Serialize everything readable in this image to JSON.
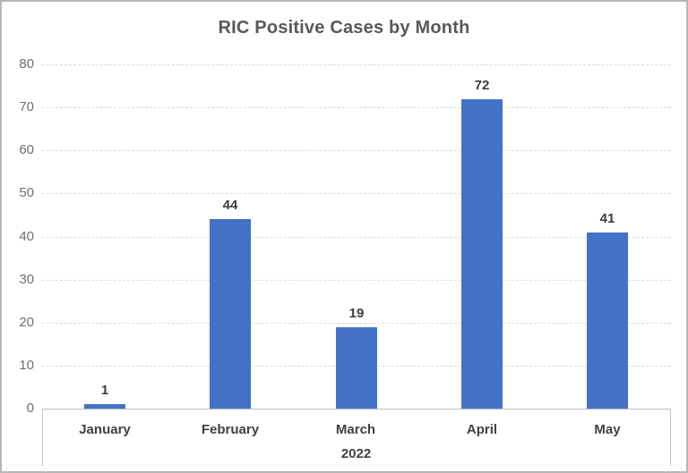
{
  "chart_data": {
    "type": "bar",
    "title": "RIC Positive Cases by Month",
    "categories": [
      "January",
      "February",
      "March",
      "April",
      "May"
    ],
    "values": [
      1,
      44,
      19,
      72,
      41
    ],
    "data_labels": [
      1,
      44,
      19,
      72,
      41
    ],
    "xlabel": "2022",
    "ylabel": "",
    "ylim": [
      0,
      80
    ],
    "ytick_step": 10,
    "ytick_labels": [
      "0",
      "10",
      "20",
      "30",
      "40",
      "50",
      "60",
      "70",
      "80"
    ],
    "grid": true,
    "legend": "none",
    "bar_color": "#4472C4",
    "series_name": "RIC Positive Cases"
  },
  "colors": {
    "bar": "#4472C4",
    "title_text": "#595959",
    "axis_text": "#6f6f6f",
    "label_text": "#3d3d3d",
    "gridline": "#dcdcdc",
    "axis_line": "#bfbfbf",
    "frame_border": "#b7b7b7",
    "background": "#ffffff"
  }
}
